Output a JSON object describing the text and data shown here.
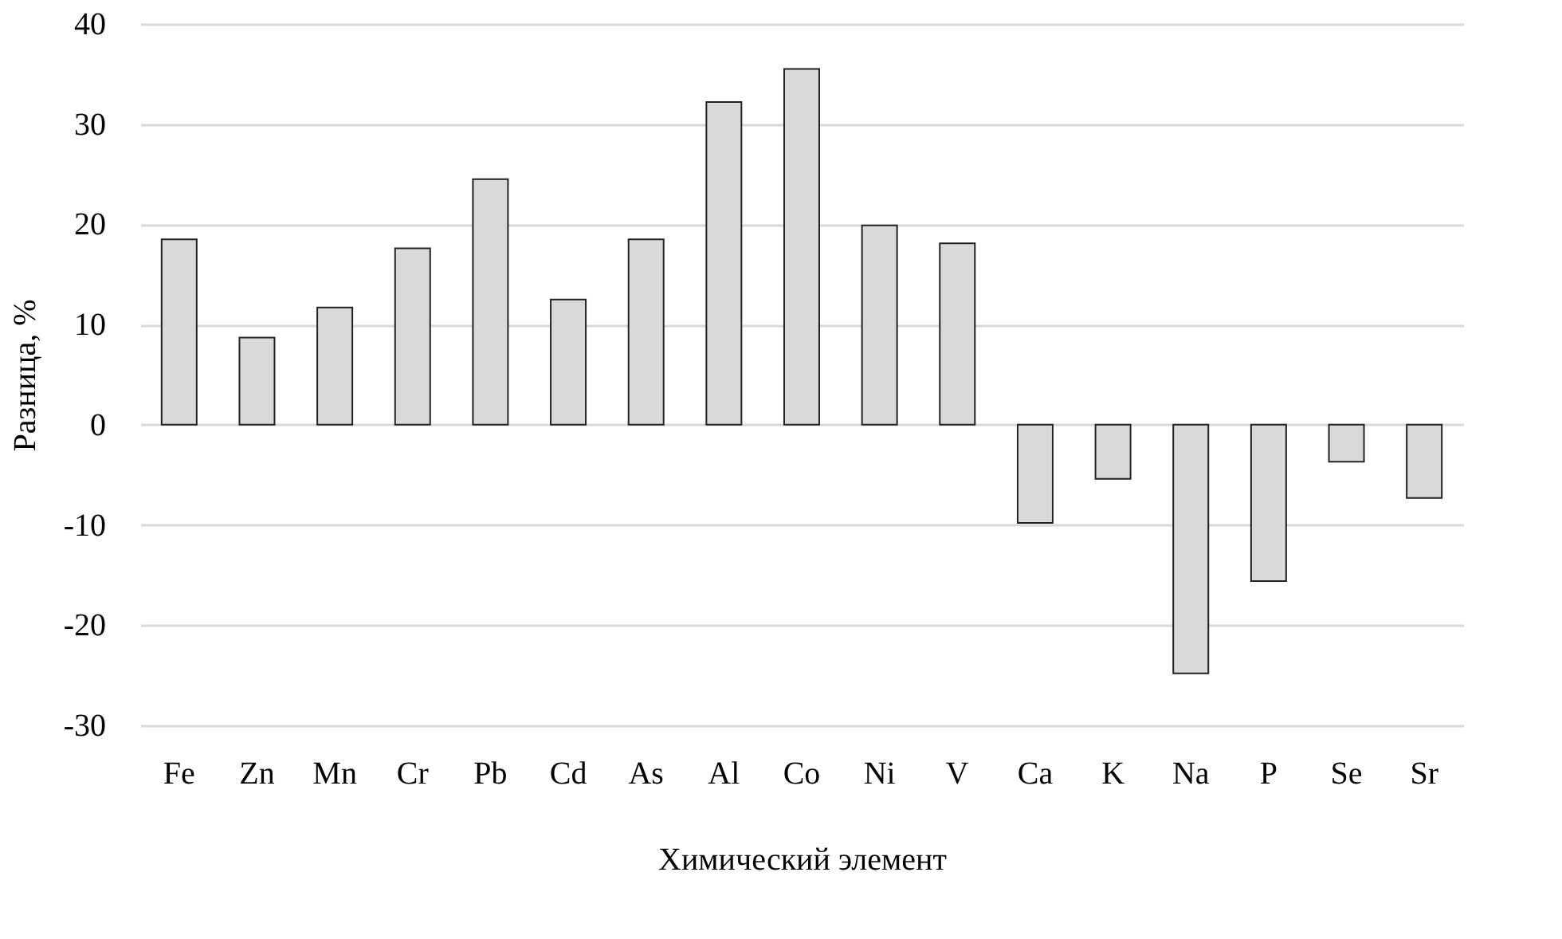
{
  "chart_data": {
    "type": "bar",
    "xlabel": "Химический элемент",
    "ylabel": "Разница, %",
    "categories": [
      "Fe",
      "Zn",
      "Mn",
      "Cr",
      "Pb",
      "Cd",
      "As",
      "Al",
      "Co",
      "Ni",
      "V",
      "Ca",
      "K",
      "Na",
      "P",
      "Se",
      "Sr"
    ],
    "series": [
      {
        "color": "#d9d9d9",
        "values": [
          18.5,
          8.7,
          11.7,
          17.6,
          24.5,
          12.5,
          18.5,
          32.2,
          35.5,
          19.9,
          18.1,
          -9.8,
          -5.4,
          -24.8,
          -15.6,
          -3.7,
          -7.3
        ]
      }
    ],
    "ylim": [
      -30,
      40
    ],
    "yticks": [
      -30,
      -20,
      -10,
      0,
      10,
      20,
      30,
      40
    ],
    "grid": "y"
  }
}
